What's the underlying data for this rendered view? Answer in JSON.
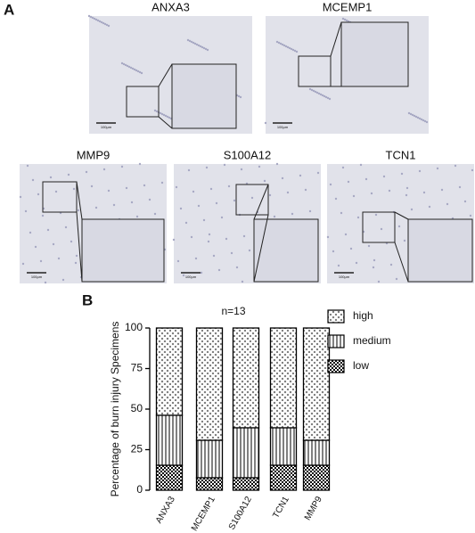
{
  "panel_a": {
    "label": "A",
    "images": [
      {
        "title": "ANXA3",
        "scale": "100μm"
      },
      {
        "title": "MCEMP1",
        "scale": "100μm"
      },
      {
        "title": "MMP9",
        "scale": "100μm"
      },
      {
        "title": "S100A12",
        "scale": "100μm"
      },
      {
        "title": "TCN1",
        "scale": "100μm"
      }
    ]
  },
  "panel_b": {
    "label": "B"
  },
  "chart_data": {
    "type": "stacked-bar",
    "title": "n=13",
    "y_label": "Percentage of burn injury Specimens",
    "categories": [
      "ANXA3",
      "MCEMP1",
      "S100A12",
      "TCN1",
      "MMP9"
    ],
    "series": [
      {
        "name": "low",
        "color": "#000000",
        "pattern": "checker",
        "values": [
          15.4,
          7.7,
          7.7,
          15.4,
          15.4
        ]
      },
      {
        "name": "medium",
        "color": "#000000",
        "pattern": "vlines",
        "values": [
          30.8,
          23.1,
          30.8,
          23.1,
          15.4
        ]
      },
      {
        "name": "high",
        "color": "#000000",
        "pattern": "dots",
        "values": [
          53.8,
          69.2,
          61.5,
          61.5,
          69.2
        ]
      }
    ],
    "ylim": [
      0,
      100
    ],
    "yticks": [
      0,
      25,
      50,
      75,
      100
    ],
    "legend": "right"
  }
}
